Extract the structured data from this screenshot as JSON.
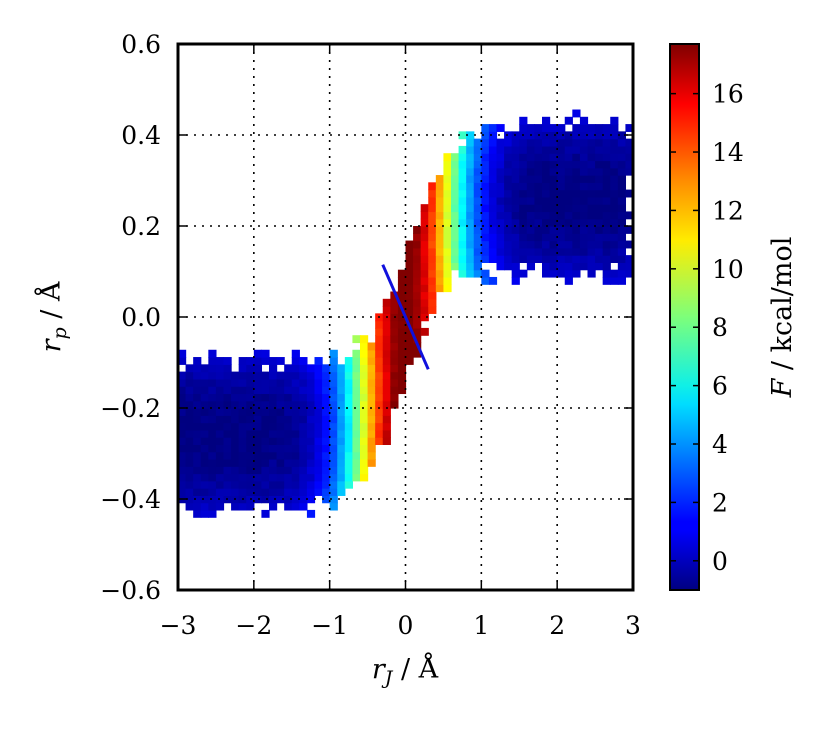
{
  "chart_data": {
    "type": "heatmap",
    "title": "",
    "xlabel": {
      "sym": "r",
      "sub": "J",
      "unit": " / Å"
    },
    "ylabel": {
      "sym": "r",
      "sub": "p",
      "unit": " / Å"
    },
    "xlim": [
      -3,
      3
    ],
    "ylim": [
      -0.6,
      0.6
    ],
    "x_ticks": [
      -3,
      -2,
      -1,
      0,
      1,
      2,
      3
    ],
    "x_tick_labels": [
      "−3",
      "−2",
      "−1",
      "0",
      "1",
      "2",
      "3"
    ],
    "y_ticks": [
      -0.6,
      -0.4,
      -0.2,
      0.0,
      0.2,
      0.4,
      0.6
    ],
    "y_tick_labels": [
      "−0.6",
      "−0.4",
      "−0.2",
      "0.0",
      "0.2",
      "0.4",
      "0.6"
    ],
    "grid": "dotted",
    "colorbar": {
      "label": {
        "sym": "F",
        "unit": " / kcal/mol"
      },
      "range": [
        -1,
        17.7
      ],
      "ticks": [
        0,
        2,
        4,
        6,
        8,
        10,
        12,
        14,
        16
      ],
      "tick_labels": [
        "0",
        "2",
        "4",
        "6",
        "8",
        "10",
        "12",
        "14",
        "16"
      ],
      "colormap": "jet"
    },
    "free_energy_surface": {
      "description_of_shape": "double well connected along a diagonal ridge",
      "minima": [
        {
          "x": -2.3,
          "y": -0.27,
          "F": -1.0
        },
        {
          "x": 2.0,
          "y": 0.26,
          "F": -1.0
        }
      ],
      "barrier_max": {
        "x": 0.0,
        "y": 0.0,
        "F": 17.7
      }
    },
    "line": {
      "color": "#1010dd",
      "x": [
        -0.3,
        0.3
      ],
      "y": [
        0.115,
        -0.115
      ]
    }
  }
}
